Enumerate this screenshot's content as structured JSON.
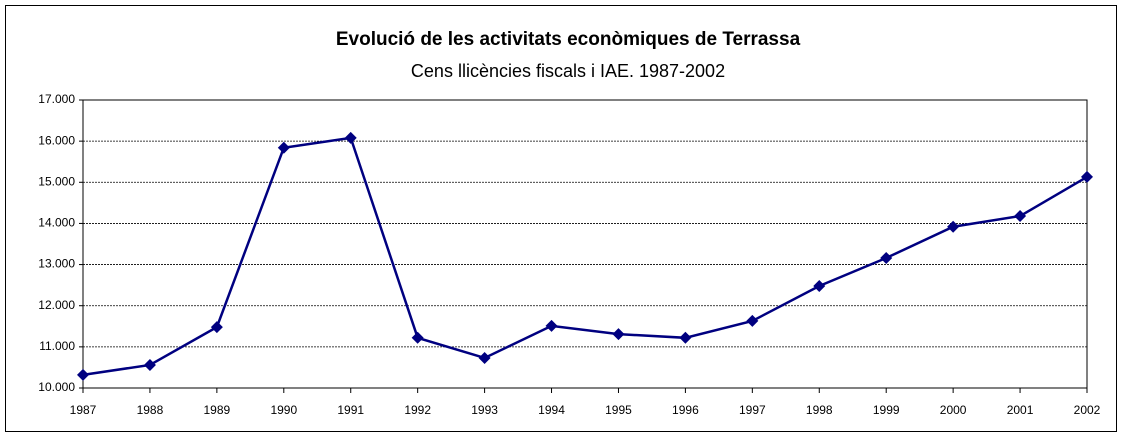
{
  "chart_data": {
    "type": "line",
    "title": "Evolució de les activitats econòmiques de Terrassa",
    "subtitle": "Cens llicències fiscals i IAE. 1987-2002",
    "categories": [
      "1987",
      "1988",
      "1989",
      "1990",
      "1991",
      "1992",
      "1993",
      "1994",
      "1995",
      "1996",
      "1997",
      "1998",
      "1999",
      "2000",
      "2001",
      "2002"
    ],
    "series": [
      {
        "color": "#000080",
        "values": [
          10320,
          10560,
          11480,
          15840,
          16080,
          11220,
          10730,
          11510,
          11310,
          11220,
          11630,
          12480,
          13160,
          13920,
          14180,
          15130
        ]
      }
    ],
    "ylim": [
      10000,
      17000
    ],
    "yticks": [
      {
        "value": 10000,
        "label": "10.000"
      },
      {
        "value": 11000,
        "label": "11.000"
      },
      {
        "value": 12000,
        "label": "12.000"
      },
      {
        "value": 13000,
        "label": "13.000"
      },
      {
        "value": 14000,
        "label": "14.000"
      },
      {
        "value": 15000,
        "label": "15.000"
      },
      {
        "value": 16000,
        "label": "16.000"
      },
      {
        "value": 17000,
        "label": "17.000"
      }
    ],
    "grid": true
  }
}
